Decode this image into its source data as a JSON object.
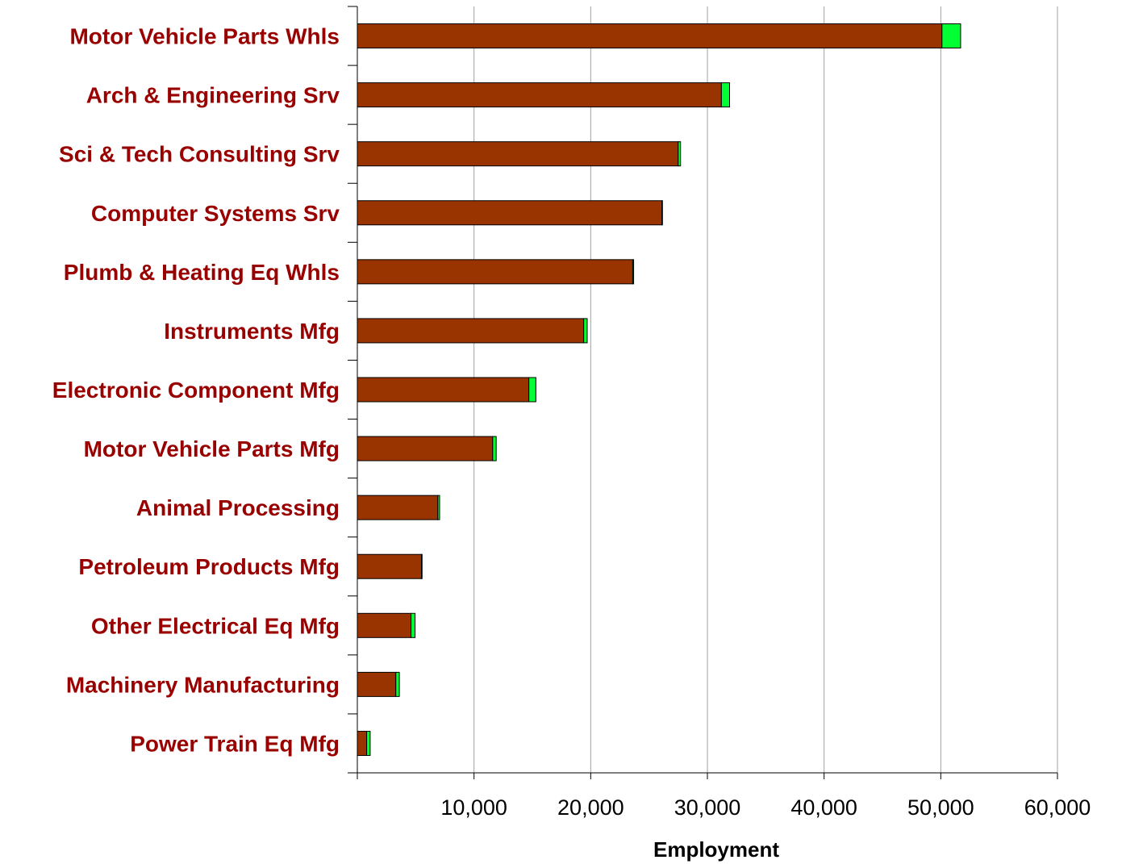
{
  "colors": {
    "label": "#990000",
    "bar_primary": "#993300",
    "bar_secondary": "#00ff33",
    "grid": "#a0a0a0",
    "axis": "#000000"
  },
  "chart_data": {
    "type": "bar",
    "orientation": "horizontal",
    "stacked": true,
    "title": "",
    "xlabel": "Employment",
    "ylabel": "",
    "xlim": [
      0,
      60000
    ],
    "xticks": [
      10000,
      20000,
      30000,
      40000,
      50000,
      60000
    ],
    "xtick_labels": [
      "10,000",
      "20,000",
      "30,000",
      "40,000",
      "50,000",
      "60,000"
    ],
    "grid": "vertical major gridlines",
    "legend": "none",
    "categories": [
      "Motor Vehicle Parts Whls",
      "Arch & Engineering Srv",
      "Sci & Tech Consulting Srv",
      "Computer Systems Srv",
      "Plumb & Heating Eq Whls",
      "Instruments Mfg",
      "Electronic Component Mfg",
      "Motor Vehicle Parts Mfg",
      "Animal Processing",
      "Petroleum Products Mfg",
      "Other Electrical Eq Mfg",
      "Machinery Manufacturing",
      "Power Train Eq Mfg"
    ],
    "series": [
      {
        "values": [
          50100,
          31200,
          27500,
          26100,
          23600,
          19400,
          14700,
          11600,
          6900,
          5500,
          4600,
          3300,
          800
        ]
      },
      {
        "values": [
          1600,
          700,
          200,
          50,
          80,
          300,
          600,
          300,
          150,
          50,
          350,
          300,
          300
        ]
      }
    ]
  }
}
